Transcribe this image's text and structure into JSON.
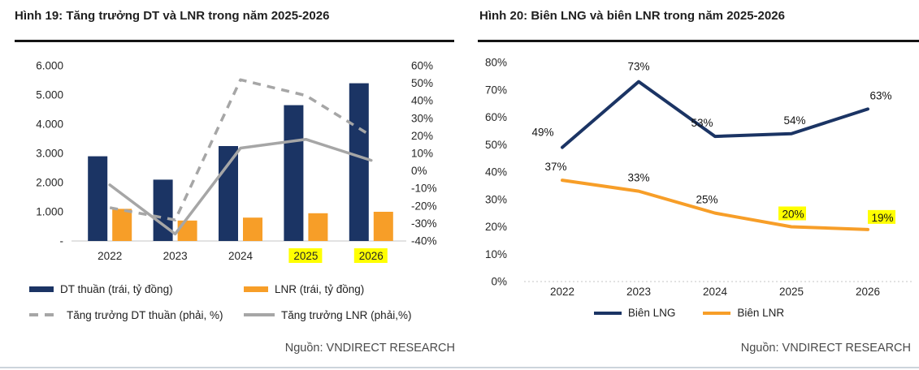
{
  "colors": {
    "navy": "#1b3464",
    "orange": "#f79e28",
    "gray_line": "#a6a6a6",
    "highlight_yellow": "#ffff00",
    "title_rule": "#141414",
    "axis_text": "#262626",
    "title_text": "#1f1f1f",
    "source_text": "#4a4a4a",
    "baseline_gray": "#d9d9d9"
  },
  "left_panel": {
    "title": "Hình 19: Tăng trưởng DT và LNR trong năm 2025-2026",
    "source": "Nguồn: VNDIRECT RESEARCH",
    "legend": [
      {
        "swatch": "bar-navy",
        "label": "DT thuần (trái, tỷ đồng)"
      },
      {
        "swatch": "bar-orange",
        "label": "LNR (trái, tỷ đồng)"
      },
      {
        "swatch": "line-dashed-gray",
        "label": "Tăng trưởng DT thuần (phải, %)"
      },
      {
        "swatch": "line-solid-gray",
        "label": "Tăng trưởng LNR (phải,%)"
      }
    ],
    "chart_data": {
      "type": "bar",
      "subtype": "combo-bar-line-dual-axis",
      "categories": [
        "2022",
        "2023",
        "2024",
        "2025",
        "2026"
      ],
      "highlighted_categories": [
        "2025",
        "2026"
      ],
      "bar_series": [
        {
          "name": "DT thuần (trái, tỷ đồng)",
          "color_key": "navy",
          "values": [
            2900,
            2100,
            3250,
            4650,
            5400
          ]
        },
        {
          "name": "LNR (trái, tỷ đồng)",
          "color_key": "orange",
          "values": [
            1100,
            700,
            800,
            950,
            1000
          ]
        }
      ],
      "line_series": [
        {
          "name": "Tăng trưởng DT thuần (phải, %)",
          "style": "dashed",
          "color_key": "gray_line",
          "values": [
            -21,
            -28,
            52,
            43,
            20
          ]
        },
        {
          "name": "Tăng trưởng LNR (phải,%)",
          "style": "solid",
          "color_key": "gray_line",
          "values": [
            -8,
            -36,
            13,
            18,
            6
          ]
        }
      ],
      "left_axis": {
        "min": 0,
        "max": 6000,
        "step": 1000,
        "tick_labels": [
          "6.000",
          "5.000",
          "4.000",
          "3.000",
          "2.000",
          "1.000",
          "-"
        ]
      },
      "right_axis": {
        "min": -40,
        "max": 60,
        "step": 10,
        "tick_labels": [
          "60%",
          "50%",
          "40%",
          "30%",
          "20%",
          "10%",
          "0%",
          "-10%",
          "-20%",
          "-30%",
          "-40%"
        ]
      },
      "grid": false,
      "legend_position": "bottom"
    }
  },
  "right_panel": {
    "title": "Hình 20: Biên LNG và biên LNR trong năm 2025-2026",
    "source": "Nguồn: VNDIRECT RESEARCH",
    "legend": [
      {
        "swatch": "line-navy",
        "label": "Biên LNG"
      },
      {
        "swatch": "line-orange",
        "label": "Biên LNR"
      }
    ],
    "chart_data": {
      "type": "line",
      "categories": [
        "2022",
        "2023",
        "2024",
        "2025",
        "2026"
      ],
      "y_axis": {
        "min": 0,
        "max": 80,
        "step": 10,
        "tick_labels": [
          "80%",
          "70%",
          "60%",
          "50%",
          "40%",
          "30%",
          "20%",
          "10%",
          "0%"
        ]
      },
      "series": [
        {
          "name": "Biên LNG",
          "color_key": "navy",
          "values": [
            49,
            73,
            53,
            54,
            63
          ],
          "point_labels": [
            "49%",
            "73%",
            "53%",
            "54%",
            "63%"
          ],
          "label_highlight": [
            false,
            false,
            false,
            false,
            false
          ],
          "label_offsets": [
            [
              -24,
              -16
            ],
            [
              0,
              -16
            ],
            [
              -16,
              -14
            ],
            [
              4,
              -14
            ],
            [
              16,
              -14
            ]
          ]
        },
        {
          "name": "Biên LNR",
          "color_key": "orange",
          "values": [
            37,
            33,
            25,
            20,
            19
          ],
          "point_labels": [
            "37%",
            "33%",
            "25%",
            "20%",
            "19%"
          ],
          "label_highlight": [
            false,
            false,
            false,
            true,
            true
          ],
          "label_offsets": [
            [
              -8,
              -14
            ],
            [
              0,
              -14
            ],
            [
              -10,
              -14
            ],
            [
              2,
              -13
            ],
            [
              18,
              -12
            ]
          ]
        }
      ],
      "grid": false,
      "legend_position": "bottom"
    }
  }
}
